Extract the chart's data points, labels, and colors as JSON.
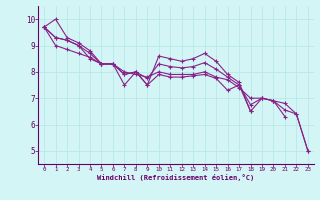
{
  "xlabel": "Windchill (Refroidissement éolien,°C)",
  "bg_color": "#d4f5f5",
  "grid_color": "#b8e8e8",
  "line_color": "#882288",
  "x": [
    0,
    1,
    2,
    3,
    4,
    5,
    6,
    7,
    8,
    9,
    10,
    11,
    12,
    13,
    14,
    15,
    16,
    17,
    18,
    19,
    20,
    21,
    22,
    23
  ],
  "lines": [
    [
      9.7,
      10.0,
      9.3,
      9.1,
      8.8,
      8.3,
      8.3,
      7.9,
      8.0,
      7.5,
      8.6,
      8.5,
      8.4,
      8.5,
      8.7,
      8.4,
      7.9,
      7.6,
      6.5,
      7.0,
      6.9,
      6.3,
      null,
      null
    ],
    [
      9.7,
      9.3,
      9.2,
      9.0,
      8.7,
      8.3,
      8.3,
      8.0,
      7.9,
      7.8,
      8.0,
      7.9,
      7.9,
      7.9,
      8.0,
      7.8,
      7.7,
      7.4,
      7.0,
      7.0,
      6.9,
      6.8,
      6.4,
      5.0
    ],
    [
      9.7,
      9.0,
      8.85,
      8.7,
      8.55,
      8.3,
      8.3,
      7.9,
      8.0,
      7.75,
      8.3,
      8.2,
      8.15,
      8.2,
      8.35,
      8.1,
      7.8,
      7.5,
      6.75,
      7.0,
      6.9,
      6.55,
      6.4,
      5.0
    ],
    [
      9.7,
      9.3,
      9.2,
      9.0,
      8.5,
      8.3,
      8.3,
      7.5,
      8.0,
      7.5,
      7.9,
      7.8,
      7.8,
      7.85,
      7.9,
      7.75,
      7.3,
      7.5,
      6.5,
      null,
      null,
      null,
      null,
      null
    ]
  ],
  "ylim": [
    4.5,
    10.5
  ],
  "xlim": [
    -0.5,
    23.5
  ],
  "yticks": [
    5,
    6,
    7,
    8,
    9,
    10
  ],
  "xticks": [
    0,
    1,
    2,
    3,
    4,
    5,
    6,
    7,
    8,
    9,
    10,
    11,
    12,
    13,
    14,
    15,
    16,
    17,
    18,
    19,
    20,
    21,
    22,
    23
  ],
  "xlabel_color": "#660066",
  "tick_color": "#660066",
  "spine_color": "#660066"
}
